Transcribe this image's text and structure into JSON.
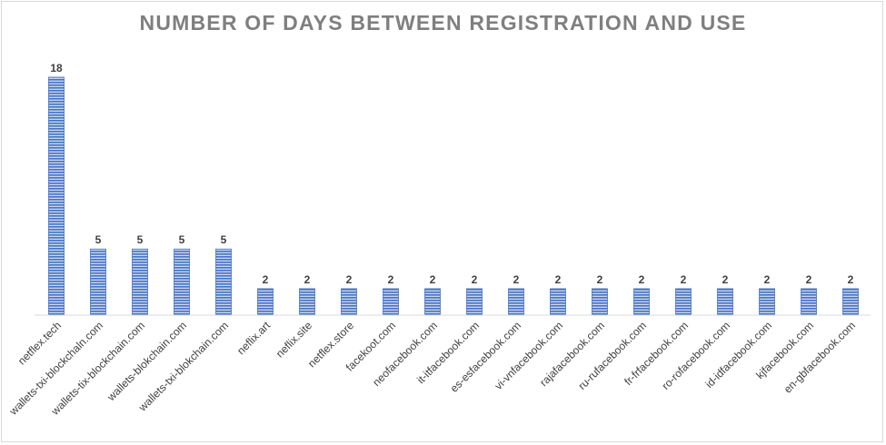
{
  "chart_data": {
    "type": "bar",
    "title": "NUMBER OF DAYS BETWEEN REGISTRATION AND USE",
    "xlabel": "",
    "ylabel": "",
    "ylim": [
      0,
      20
    ],
    "grid": false,
    "legend": "none",
    "bar_color": "#4472c4",
    "categories": [
      "netflex.tech",
      "wallets-txi-blockchaln.com",
      "wallets-tix-blockchain.com",
      "wallets-blokchain.com",
      "wallets-txi-blokchain.com",
      "neflix.art",
      "neflix.site",
      "netflex.store",
      "facekoot.com",
      "neofacebook.com",
      "it-itfacebook.com",
      "es-esfacebook.com",
      "vi-vnfacebook.com",
      "rajafacebook.com",
      "ru-rufacebook.com",
      "fr-frfacebook.com",
      "ro-rofacebook.com",
      "id-idfacebook.com",
      "kjfacebook.com",
      "en-gbfacebook.com"
    ],
    "values": [
      18,
      5,
      5,
      5,
      5,
      2,
      2,
      2,
      2,
      2,
      2,
      2,
      2,
      2,
      2,
      2,
      2,
      2,
      2,
      2
    ]
  }
}
